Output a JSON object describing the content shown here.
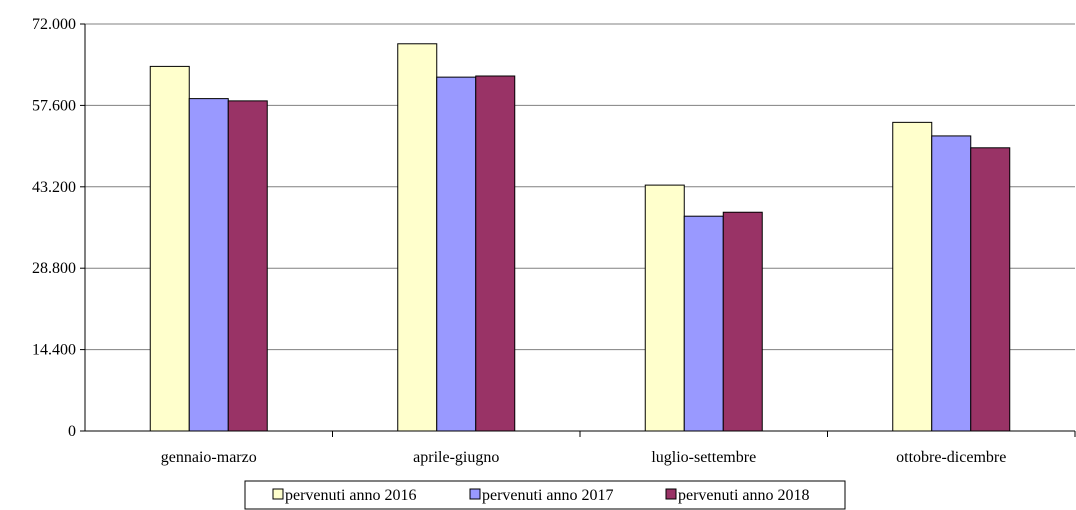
{
  "chart_data": {
    "type": "bar",
    "categories": [
      "gennaio-marzo",
      "aprile-giugno",
      "luglio-settembre",
      "ottobre-dicembre"
    ],
    "series": [
      {
        "name": "pervenuti anno 2016",
        "values": [
          64500,
          68500,
          43500,
          54600
        ],
        "color": "#FFFFCC"
      },
      {
        "name": "pervenuti anno 2017",
        "values": [
          58800,
          62600,
          38000,
          52200
        ],
        "color": "#9999FF"
      },
      {
        "name": "pervenuti anno 2018",
        "values": [
          58400,
          62800,
          38700,
          50100
        ],
        "color": "#993366"
      }
    ],
    "y_ticks": [
      "0",
      "14.400",
      "28.800",
      "43.200",
      "57.600",
      "72.000"
    ],
    "ylim": [
      0,
      72000
    ],
    "grid": true,
    "legend_position": "bottom"
  }
}
